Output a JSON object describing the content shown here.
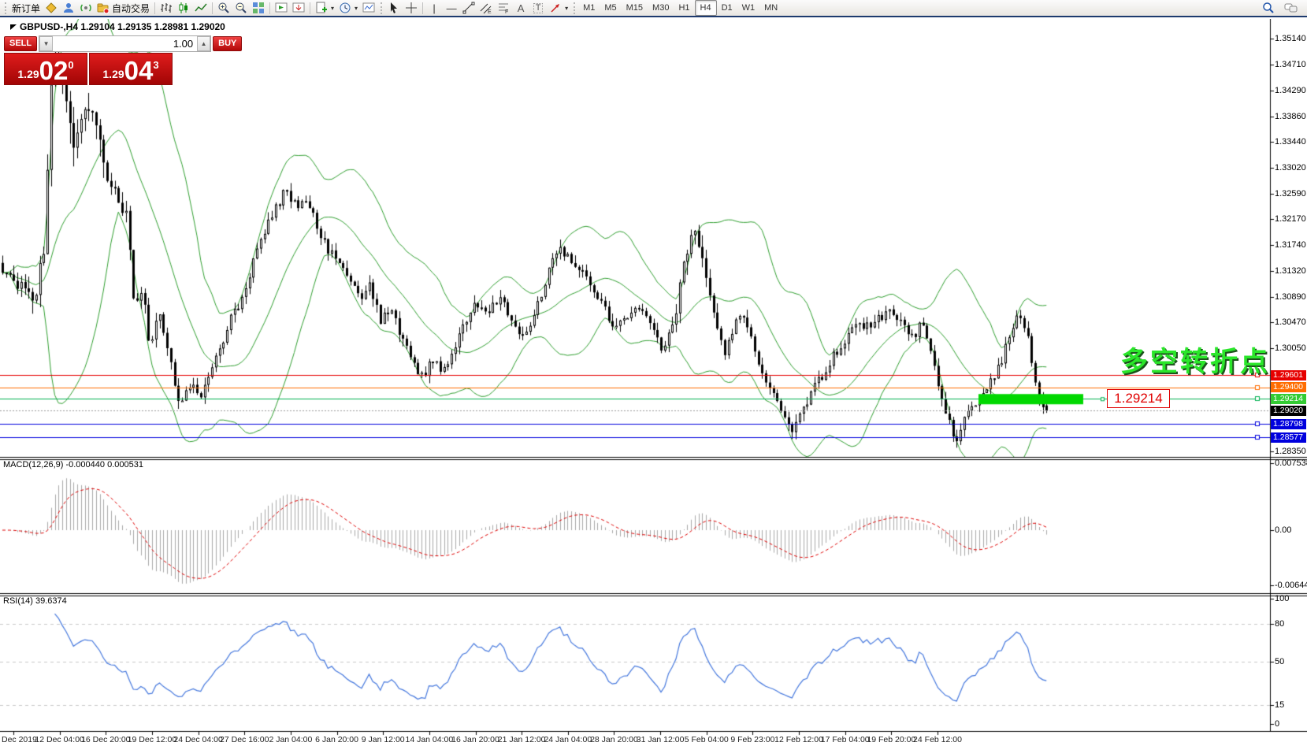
{
  "toolbar": {
    "new_order": "新订单",
    "autotrade": "自动交易",
    "timeframes": [
      "M1",
      "M5",
      "M15",
      "M30",
      "H1",
      "H4",
      "D1",
      "W1",
      "MN"
    ],
    "active_timeframe": "H4"
  },
  "quote": {
    "symbol_line": "GBPUSD-,H4 1.29104 1.29135 1.28981 1.29020"
  },
  "trade_panel": {
    "sell_label": "SELL",
    "buy_label": "BUY",
    "volume": "1.00",
    "sell_price": {
      "base": "1.29",
      "big": "02",
      "sup": "0"
    },
    "buy_price": {
      "base": "1.29",
      "big": "04",
      "sup": "3"
    }
  },
  "price_axis": {
    "ticks": [
      "1.35140",
      "1.34710",
      "1.34290",
      "1.33860",
      "1.33440",
      "1.33020",
      "1.32590",
      "1.32170",
      "1.31740",
      "1.31320",
      "1.30890",
      "1.30470",
      "1.30050",
      "1.28350"
    ],
    "tags": [
      {
        "text": "1.29601",
        "bg": "#e60000"
      },
      {
        "text": "1.29400",
        "bg": "#ff6d00"
      },
      {
        "text": "1.29214",
        "bg": "#33cc33"
      },
      {
        "text": "1.29020",
        "bg": "#000000"
      },
      {
        "text": "1.28798",
        "bg": "#0000dd"
      },
      {
        "text": "1.28577",
        "bg": "#0000dd"
      }
    ]
  },
  "macd_panel": {
    "label": "MACD(12,26,9) -0.000440 0.000531",
    "ticks": [
      "0.007538",
      "0.00",
      "-0.006446"
    ]
  },
  "rsi_panel": {
    "label": "RSI(14) 39.6374",
    "ticks": [
      "100",
      "80",
      "50",
      "15",
      "0"
    ],
    "levels": [
      80,
      50,
      15
    ],
    "value": 39.6374
  },
  "time_axis": [
    "Dec 2019",
    "12 Dec 04:00",
    "16 Dec 20:00",
    "19 Dec 12:00",
    "24 Dec 04:00",
    "27 Dec 16:00",
    "2 Jan 04:00",
    "6 Jan 20:00",
    "9 Jan 12:00",
    "14 Jan 04:00",
    "16 Jan 20:00",
    "21 Jan 12:00",
    "24 Jan 04:00",
    "28 Jan 20:00",
    "31 Jan 12:00",
    "5 Feb 04:00",
    "9 Feb 23:00",
    "12 Feb 12:00",
    "17 Feb 04:00",
    "19 Feb 20:00",
    "24 Feb 12:00"
  ],
  "annotations": {
    "turning_point": "多空转折点",
    "price_callout": "1.29214"
  },
  "chart_data": {
    "type": "candlestick",
    "symbol": "GBPUSD-",
    "timeframe": "H4",
    "current_bar": {
      "open": 1.29104,
      "high": 1.29135,
      "low": 1.28981,
      "close": 1.2902
    },
    "ylim": [
      1.28258,
      1.35464
    ],
    "bar_count": 280,
    "indicators": [
      {
        "name": "Bollinger Bands",
        "period": 20,
        "deviation": 2,
        "color": "#2f9e2f"
      },
      {
        "name": "MACD",
        "fast": 12,
        "slow": 26,
        "signal": 9,
        "main": -0.00044,
        "signal_value": 0.000531
      },
      {
        "name": "RSI",
        "period": 14,
        "value": 39.6374
      }
    ],
    "hlines": [
      {
        "price": 1.29601,
        "color": "#e60000"
      },
      {
        "price": 1.294,
        "color": "#ff6d00"
      },
      {
        "price": 1.29214,
        "color": "#00b050"
      },
      {
        "price": 1.28798,
        "color": "#0000dd"
      },
      {
        "price": 1.28577,
        "color": "#0000dd"
      }
    ],
    "current_price": 1.2902,
    "highlight": {
      "price": 1.29214,
      "color": "#00d800",
      "label": "1.29214"
    },
    "price_keypoints": [
      [
        0.0,
        1.3135
      ],
      [
        0.015,
        1.311
      ],
      [
        0.03,
        1.3085
      ],
      [
        0.04,
        1.318
      ],
      [
        0.048,
        1.351
      ],
      [
        0.055,
        1.347
      ],
      [
        0.062,
        1.3415
      ],
      [
        0.07,
        1.333
      ],
      [
        0.08,
        1.3395
      ],
      [
        0.09,
        1.336
      ],
      [
        0.1,
        1.329
      ],
      [
        0.11,
        1.3255
      ],
      [
        0.118,
        1.3225
      ],
      [
        0.126,
        1.308
      ],
      [
        0.134,
        1.311
      ],
      [
        0.141,
        1.3005
      ],
      [
        0.15,
        1.306
      ],
      [
        0.16,
        1.2985
      ],
      [
        0.17,
        1.2915
      ],
      [
        0.178,
        1.295
      ],
      [
        0.188,
        1.2925
      ],
      [
        0.196,
        1.2945
      ],
      [
        0.206,
        1.2995
      ],
      [
        0.22,
        1.306
      ],
      [
        0.232,
        1.3095
      ],
      [
        0.246,
        1.318
      ],
      [
        0.26,
        1.323
      ],
      [
        0.272,
        1.3268
      ],
      [
        0.281,
        1.3235
      ],
      [
        0.289,
        1.3258
      ],
      [
        0.3,
        1.321
      ],
      [
        0.31,
        1.3172
      ],
      [
        0.32,
        1.315
      ],
      [
        0.331,
        1.3128
      ],
      [
        0.342,
        1.3088
      ],
      [
        0.352,
        1.3108
      ],
      [
        0.362,
        1.3052
      ],
      [
        0.372,
        1.3075
      ],
      [
        0.382,
        1.302
      ],
      [
        0.392,
        1.2988
      ],
      [
        0.402,
        1.2955
      ],
      [
        0.412,
        1.2985
      ],
      [
        0.422,
        1.2962
      ],
      [
        0.432,
        1.3002
      ],
      [
        0.443,
        1.3048
      ],
      [
        0.454,
        1.308
      ],
      [
        0.465,
        1.3058
      ],
      [
        0.476,
        1.3092
      ],
      [
        0.487,
        1.3055
      ],
      [
        0.498,
        1.3018
      ],
      [
        0.509,
        1.3058
      ],
      [
        0.52,
        1.3115
      ],
      [
        0.532,
        1.3168
      ],
      [
        0.543,
        1.315
      ],
      [
        0.554,
        1.3138
      ],
      [
        0.565,
        1.3098
      ],
      [
        0.576,
        1.3068
      ],
      [
        0.587,
        1.304
      ],
      [
        0.598,
        1.3052
      ],
      [
        0.609,
        1.3068
      ],
      [
        0.62,
        1.3048
      ],
      [
        0.631,
        1.3002
      ],
      [
        0.642,
        1.3048
      ],
      [
        0.652,
        1.313
      ],
      [
        0.66,
        1.3202
      ],
      [
        0.668,
        1.3158
      ],
      [
        0.676,
        1.3092
      ],
      [
        0.684,
        1.3048
      ],
      [
        0.692,
        1.2992
      ],
      [
        0.7,
        1.3038
      ],
      [
        0.708,
        1.3068
      ],
      [
        0.716,
        1.3028
      ],
      [
        0.724,
        1.2982
      ],
      [
        0.732,
        1.2952
      ],
      [
        0.74,
        1.2922
      ],
      [
        0.748,
        1.2898
      ],
      [
        0.756,
        1.2872
      ],
      [
        0.764,
        1.2895
      ],
      [
        0.772,
        1.2918
      ],
      [
        0.78,
        1.2948
      ],
      [
        0.788,
        1.2968
      ],
      [
        0.796,
        1.2992
      ],
      [
        0.806,
        1.3012
      ],
      [
        0.818,
        1.3048
      ],
      [
        0.83,
        1.3038
      ],
      [
        0.842,
        1.3058
      ],
      [
        0.852,
        1.3068
      ],
      [
        0.862,
        1.304
      ],
      [
        0.872,
        1.3018
      ],
      [
        0.88,
        1.3048
      ],
      [
        0.888,
        1.3008
      ],
      [
        0.896,
        1.2948
      ],
      [
        0.904,
        1.2898
      ],
      [
        0.912,
        1.2852
      ],
      [
        0.922,
        1.2888
      ],
      [
        0.93,
        1.2915
      ],
      [
        0.938,
        1.2928
      ],
      [
        0.946,
        1.2948
      ],
      [
        0.954,
        1.2972
      ],
      [
        0.962,
        1.3012
      ],
      [
        0.972,
        1.3058
      ],
      [
        0.981,
        1.3032
      ],
      [
        0.99,
        1.2938
      ],
      [
        1.0,
        1.2902
      ]
    ]
  }
}
